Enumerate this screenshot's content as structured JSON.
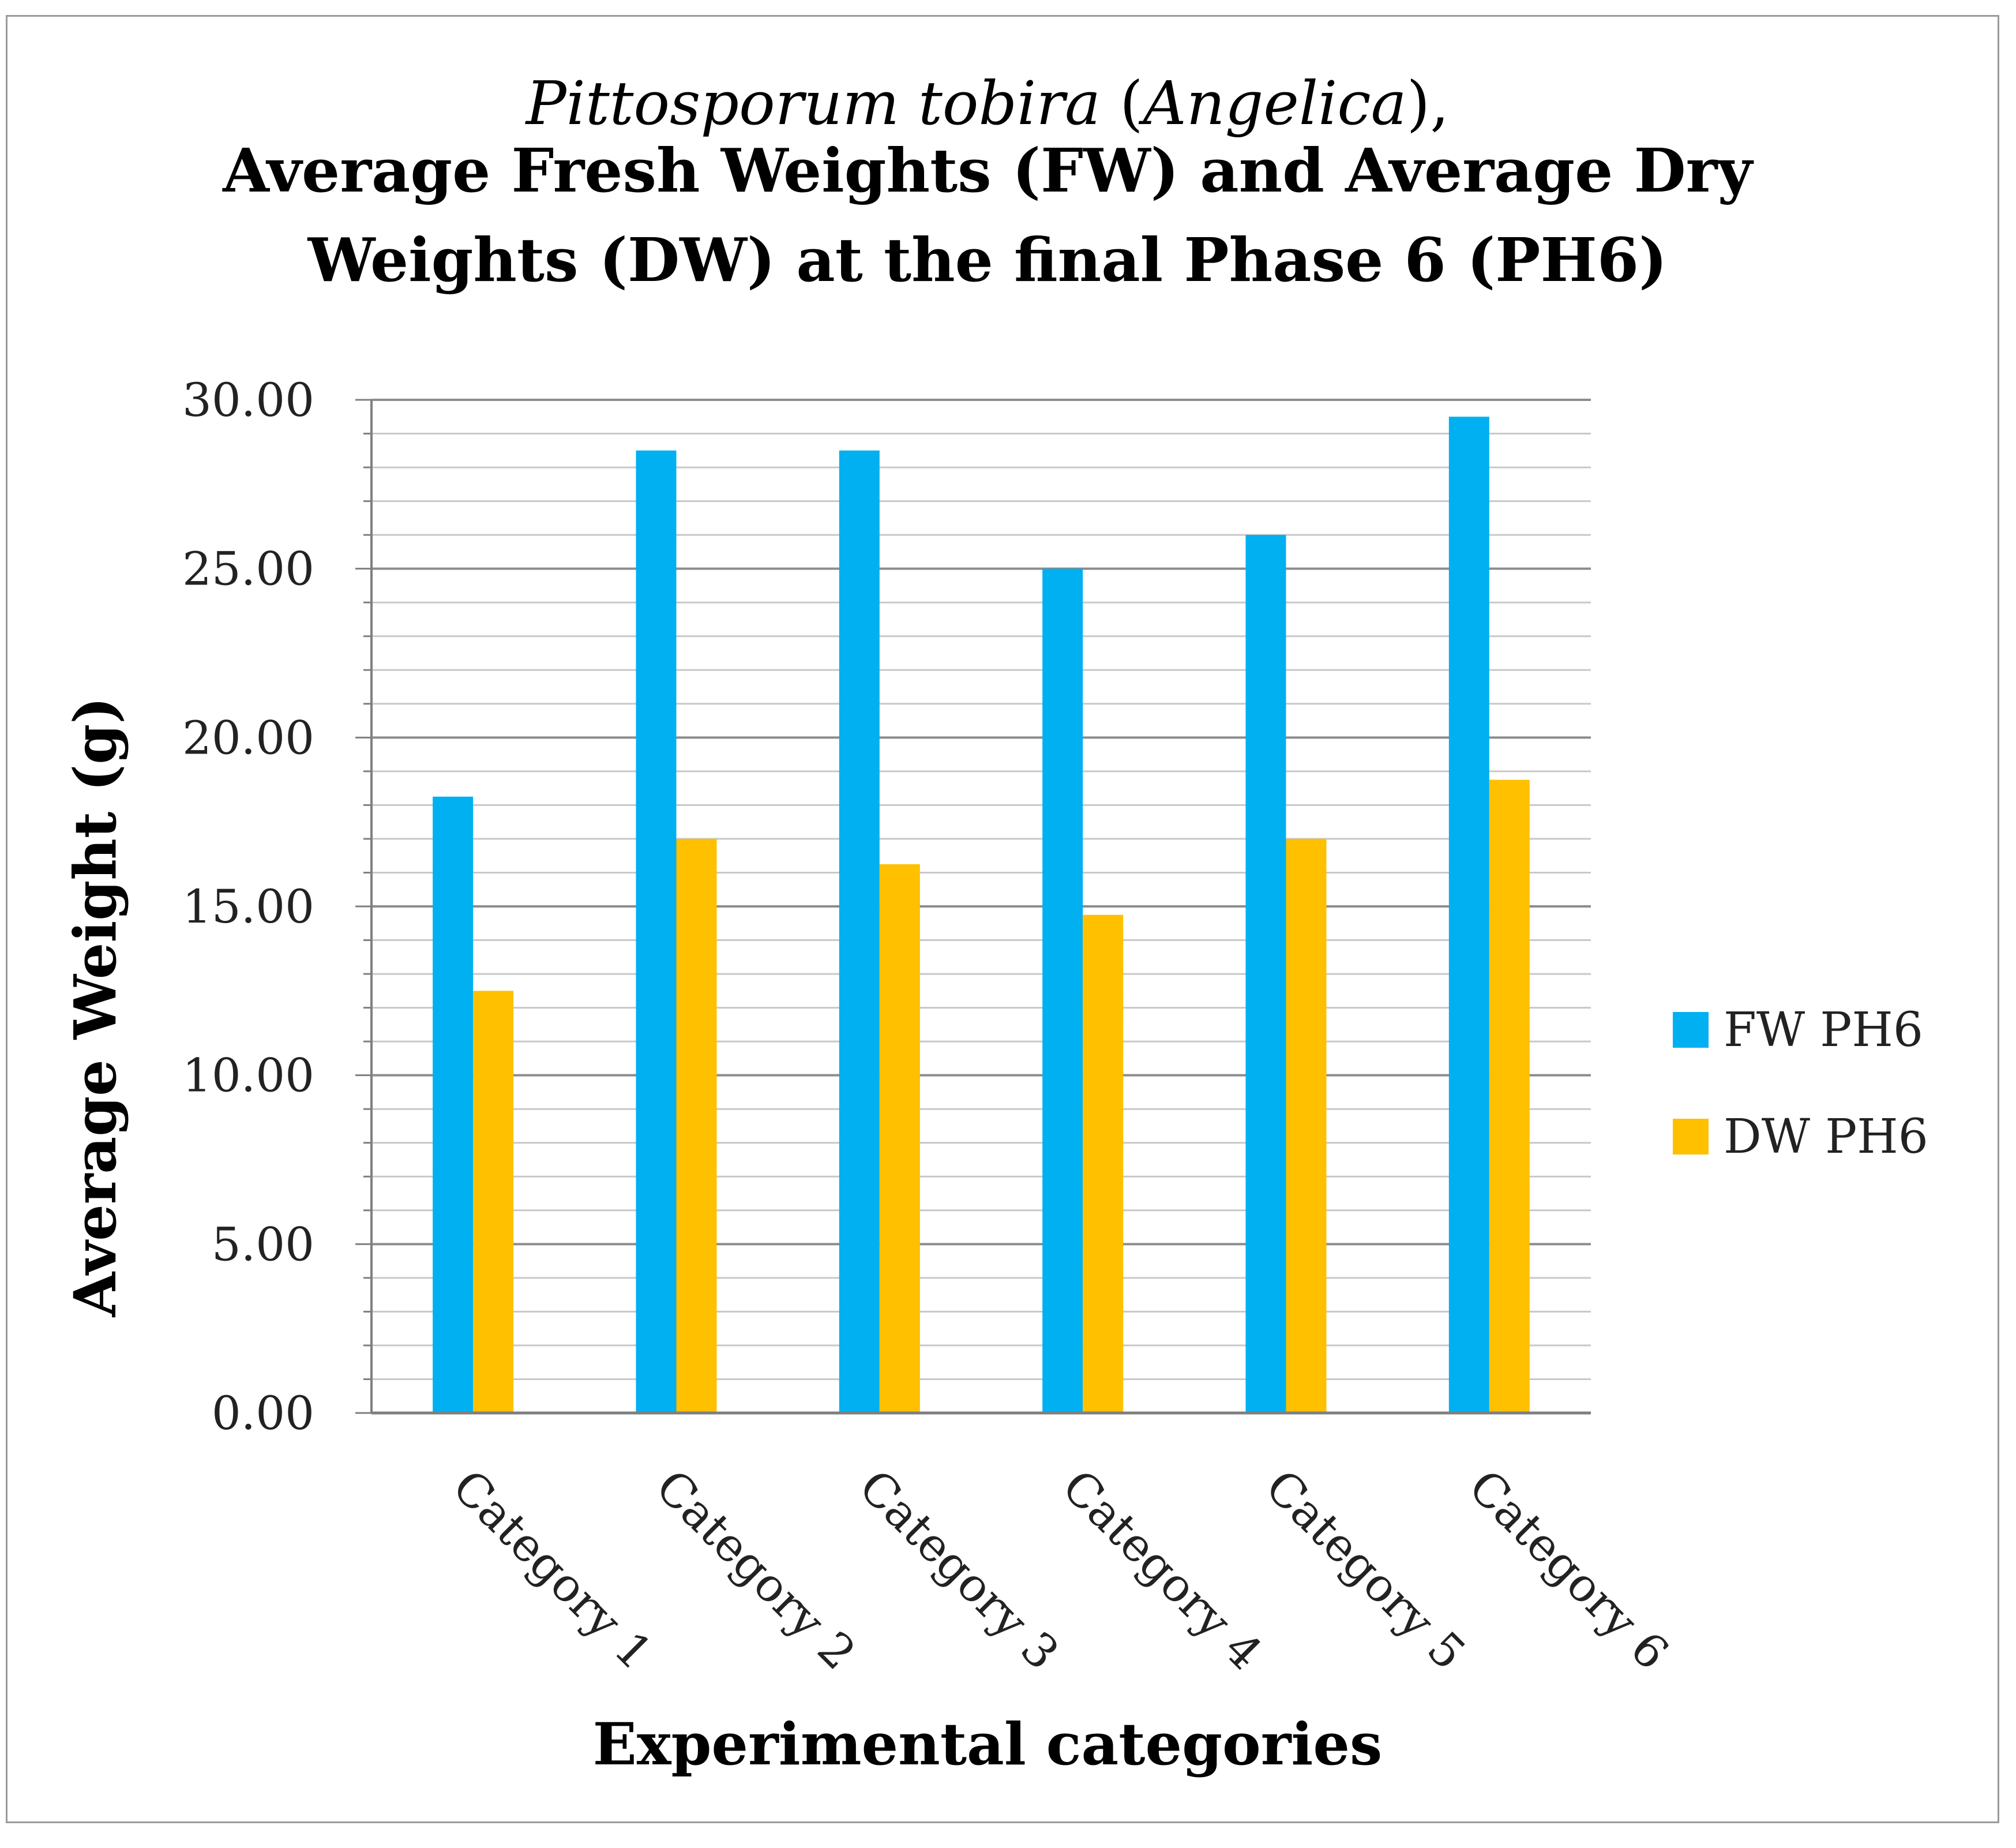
{
  "chart_data": {
    "type": "bar",
    "title_lines": [
      {
        "parts": [
          {
            "text": "Pittosporum tobira",
            "style": "italic"
          },
          {
            "text": " (",
            "style": "normal"
          },
          {
            "text": "Angelica",
            "style": "italic"
          },
          {
            "text": "),",
            "style": "normal"
          }
        ]
      },
      {
        "parts": [
          {
            "text": "Average Fresh Weights (FW) and Average Dry",
            "style": "bold"
          }
        ]
      },
      {
        "parts": [
          {
            "text": "Weights (DW) at the final Phase 6 (PH6)",
            "style": "bold"
          }
        ]
      }
    ],
    "xlabel": "Experimental categories",
    "ylabel": "Average Weight (g)",
    "categories": [
      "Category 1",
      "Category 2",
      "Category 3",
      "Category 4",
      "Category 5",
      "Category 6"
    ],
    "series": [
      {
        "name": "FW PH6",
        "color": "#00B0F0",
        "values": [
          18.25,
          28.5,
          28.5,
          25.0,
          26.0,
          29.5
        ]
      },
      {
        "name": "DW PH6",
        "color": "#FFC000",
        "values": [
          12.5,
          17.0,
          16.25,
          14.75,
          17.0,
          18.75
        ]
      }
    ],
    "ylim": [
      0,
      30
    ],
    "yticks": [
      "0.00",
      "5.00",
      "10.00",
      "15.00",
      "20.00",
      "25.00",
      "30.00"
    ],
    "major_step": 5,
    "minor_step": 1,
    "grid": true,
    "legend_position": "right"
  }
}
